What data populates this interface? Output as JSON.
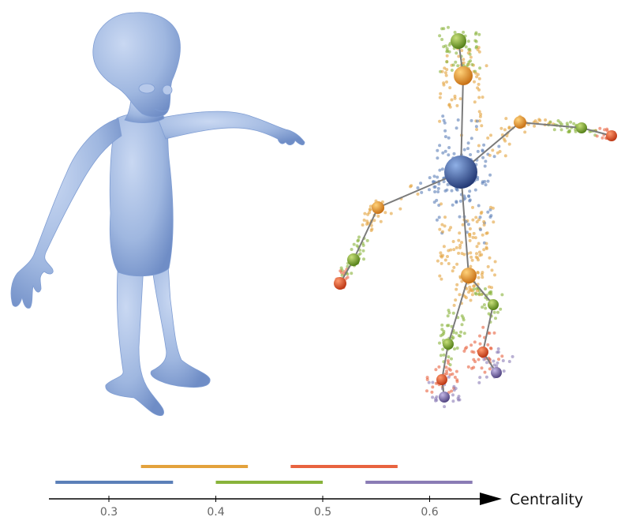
{
  "axis": {
    "label": "Centrality",
    "ticks": [
      "0.3",
      "0.4",
      "0.5",
      "0.6"
    ],
    "tick_values": [
      0.3,
      0.4,
      0.5,
      0.6
    ]
  },
  "legend_bands": [
    {
      "color": "#5b7fb8",
      "from": 0.25,
      "to": 0.36
    },
    {
      "color": "#e3a23c",
      "from": 0.33,
      "to": 0.43
    },
    {
      "color": "#88b33b",
      "from": 0.4,
      "to": 0.5
    },
    {
      "color": "#e8633f",
      "from": 0.47,
      "to": 0.57
    },
    {
      "color": "#8a7cb5",
      "from": 0.54,
      "to": 0.64
    }
  ],
  "colors": {
    "mesh": "#9fb7e0",
    "mesh_shade": "#7f9dd3",
    "skeleton_edge": "#7b7b7b"
  },
  "skeleton": {
    "nodes": [
      {
        "id": "head-top",
        "band": 2
      },
      {
        "id": "head",
        "band": 1
      },
      {
        "id": "root",
        "band": 0
      },
      {
        "id": "r-shoulder",
        "band": 1
      },
      {
        "id": "r-elbow",
        "band": 2
      },
      {
        "id": "r-hand",
        "band": 3
      },
      {
        "id": "l-shoulder",
        "band": 1
      },
      {
        "id": "l-elbow",
        "band": 2
      },
      {
        "id": "l-hand",
        "band": 3
      },
      {
        "id": "pelvis",
        "band": 1
      },
      {
        "id": "l-knee",
        "band": 2
      },
      {
        "id": "l-ankle",
        "band": 3
      },
      {
        "id": "l-foot",
        "band": 4
      },
      {
        "id": "r-knee",
        "band": 2
      },
      {
        "id": "r-ankle",
        "band": 3
      },
      {
        "id": "r-foot",
        "band": 4
      }
    ]
  }
}
